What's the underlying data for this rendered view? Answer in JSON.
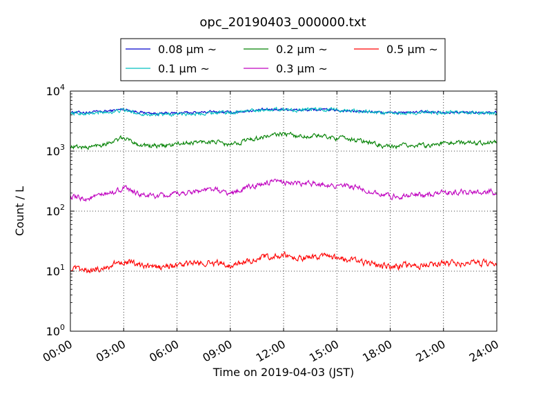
{
  "chart_data": {
    "type": "line",
    "title": "opc_20190403_000000.txt",
    "xlabel": "Time on 2019-04-03 (JST)",
    "ylabel": "Count / L",
    "y_scale": "log",
    "ylim": [
      1,
      10000
    ],
    "xlim": [
      "00:00",
      "24:00"
    ],
    "grid": true,
    "legend_position": "top-center",
    "x_tick_labels": [
      "00:00",
      "03:00",
      "06:00",
      "09:00",
      "12:00",
      "15:00",
      "18:00",
      "21:00",
      "24:00"
    ],
    "y_tick_labels": [
      {
        "base": "10",
        "exp": "0"
      },
      {
        "base": "10",
        "exp": "1"
      },
      {
        "base": "10",
        "exp": "2"
      },
      {
        "base": "10",
        "exp": "3"
      },
      {
        "base": "10",
        "exp": "4"
      }
    ],
    "series": [
      {
        "name": "0.08 μm ~",
        "color": "#0000cc",
        "hours": [
          0,
          1,
          2,
          3,
          4,
          5,
          6,
          7,
          8,
          9,
          10,
          11,
          12,
          13,
          14,
          15,
          16,
          17,
          18,
          19,
          20,
          21,
          22,
          23,
          24
        ],
        "values": [
          4500,
          4400,
          4600,
          5000,
          4400,
          4200,
          4300,
          4400,
          4500,
          4400,
          4700,
          4900,
          5000,
          4800,
          4900,
          4800,
          4600,
          4500,
          4300,
          4400,
          4500,
          4500,
          4400,
          4400,
          4400
        ]
      },
      {
        "name": "0.1 μm ~",
        "color": "#00bfbf",
        "hours": [
          0,
          1,
          2,
          3,
          4,
          5,
          6,
          7,
          8,
          9,
          10,
          11,
          12,
          13,
          14,
          15,
          16,
          17,
          18,
          19,
          20,
          21,
          22,
          23,
          24
        ],
        "values": [
          4300,
          4200,
          4400,
          4800,
          4200,
          4000,
          4100,
          4200,
          4400,
          4400,
          4700,
          4900,
          5000,
          4800,
          5000,
          4900,
          4700,
          4500,
          4200,
          4300,
          4400,
          4400,
          4400,
          4300,
          4300
        ]
      },
      {
        "name": "0.2 μm ~",
        "color": "#008000",
        "hours": [
          0,
          1,
          2,
          3,
          4,
          5,
          6,
          7,
          8,
          9,
          10,
          11,
          12,
          13,
          14,
          15,
          16,
          17,
          18,
          19,
          20,
          21,
          22,
          23,
          24
        ],
        "values": [
          1200,
          1150,
          1350,
          1650,
          1250,
          1200,
          1300,
          1400,
          1450,
          1250,
          1550,
          1750,
          1950,
          1750,
          1800,
          1650,
          1550,
          1350,
          1150,
          1250,
          1250,
          1350,
          1400,
          1400,
          1400
        ]
      },
      {
        "name": "0.3 μm ~",
        "color": "#bf00bf",
        "hours": [
          0,
          1,
          2,
          3,
          4,
          5,
          6,
          7,
          8,
          9,
          10,
          11,
          12,
          13,
          14,
          15,
          16,
          17,
          18,
          19,
          20,
          21,
          22,
          23,
          24
        ],
        "values": [
          170,
          160,
          190,
          240,
          185,
          175,
          190,
          215,
          230,
          195,
          250,
          290,
          310,
          280,
          290,
          265,
          245,
          210,
          175,
          185,
          185,
          200,
          210,
          210,
          210
        ]
      },
      {
        "name": "0.5 μm ~",
        "color": "#ff0000",
        "hours": [
          0,
          1,
          2,
          3,
          4,
          5,
          6,
          7,
          8,
          9,
          10,
          11,
          12,
          13,
          14,
          15,
          16,
          17,
          18,
          19,
          20,
          21,
          22,
          23,
          24
        ],
        "values": [
          11,
          10,
          11.5,
          15,
          12,
          11.5,
          12.5,
          13.5,
          14,
          12.5,
          15,
          17,
          18,
          16,
          17.5,
          16,
          15,
          13,
          12,
          12.5,
          12.5,
          13.5,
          13.5,
          13.5,
          13.5
        ]
      }
    ]
  }
}
